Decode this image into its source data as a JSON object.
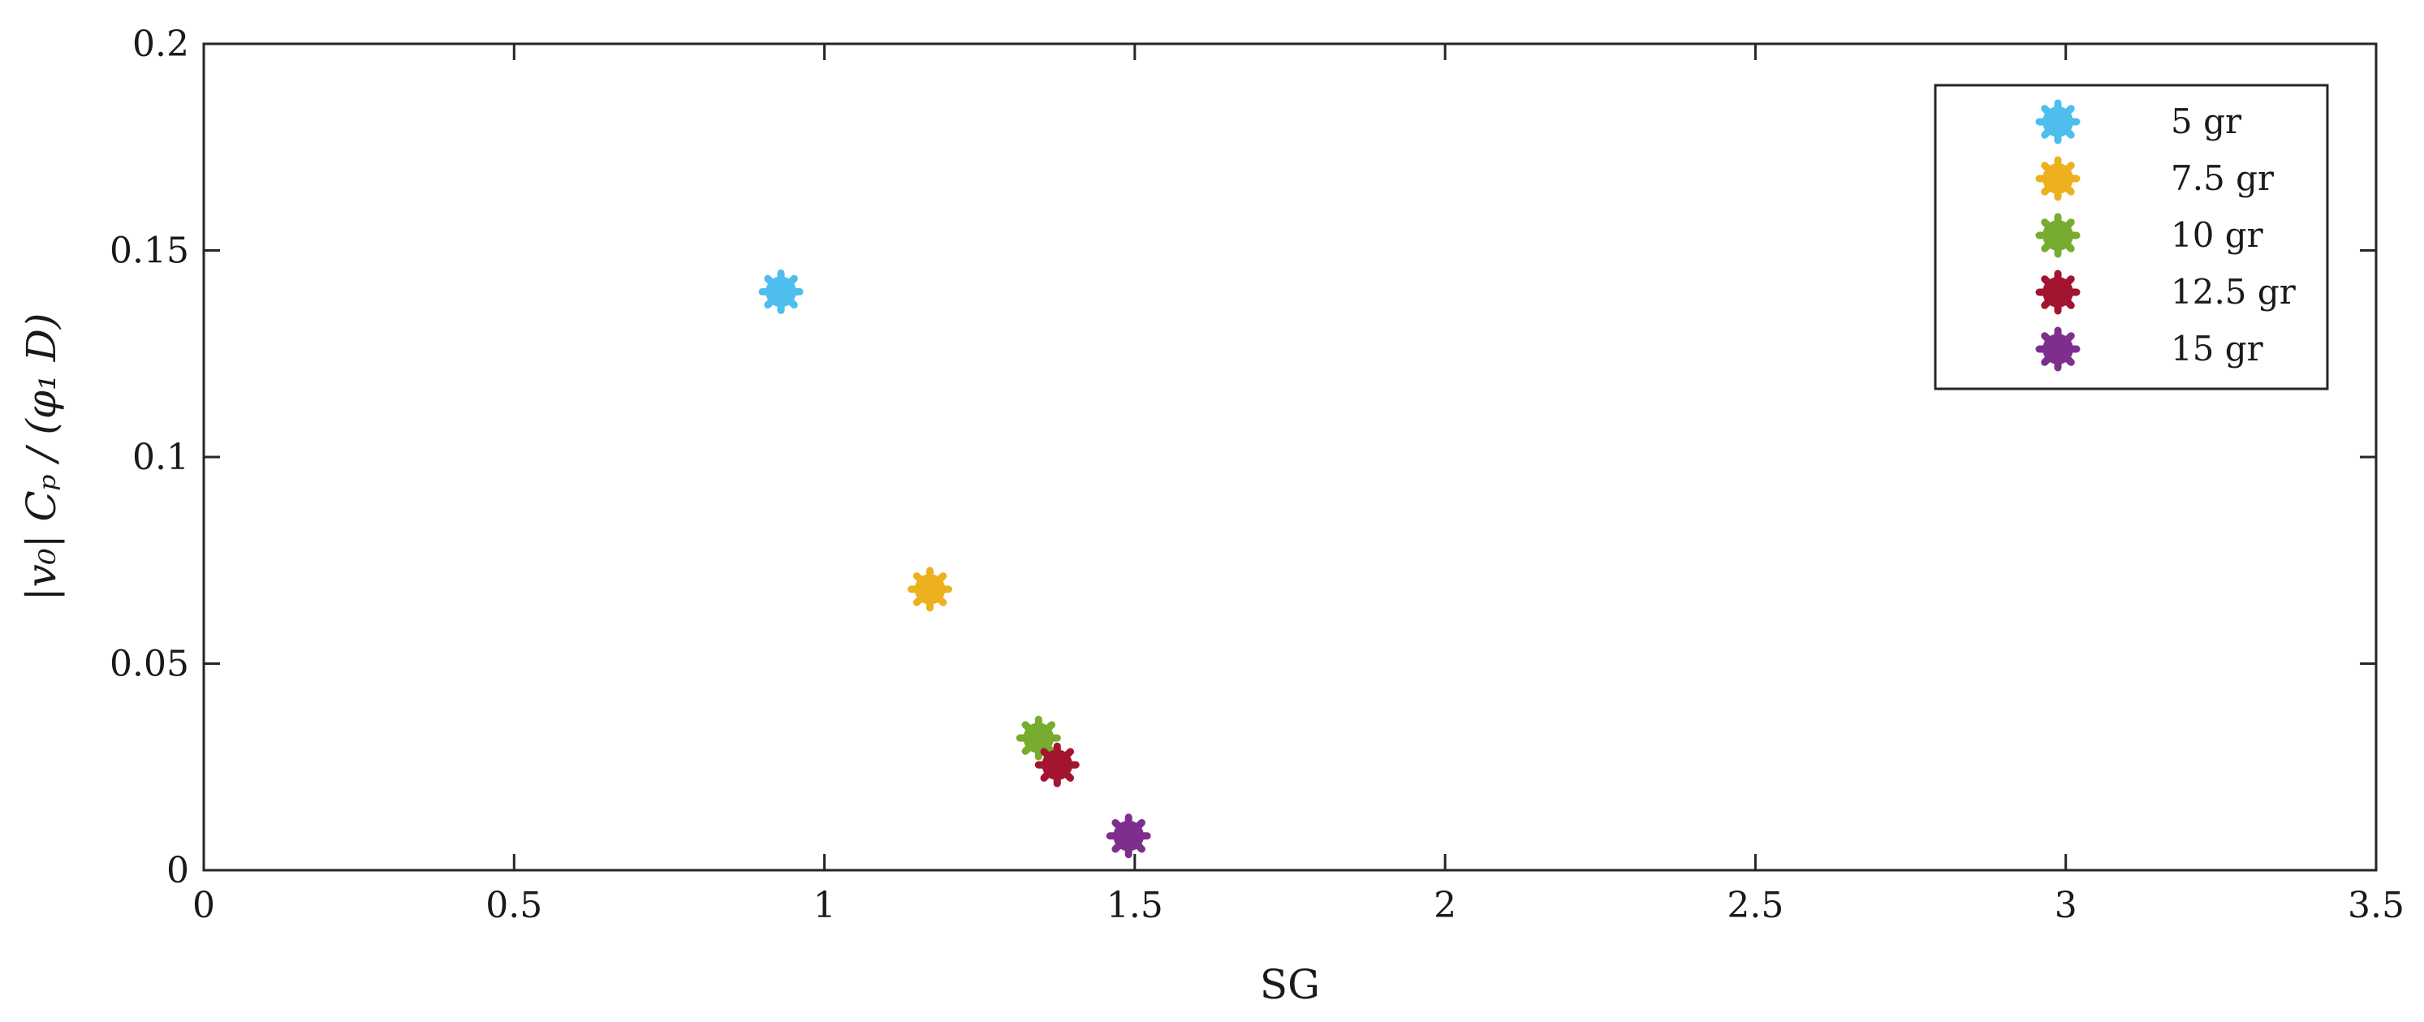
{
  "chart_data": {
    "type": "scatter",
    "xlabel": "SG",
    "ylabel": "|v₀| Cₚ / (φ₁ D)",
    "xlim": [
      0,
      3.5
    ],
    "ylim": [
      0,
      0.2
    ],
    "xticks": [
      "0",
      "0.5",
      "1",
      "1.5",
      "2",
      "2.5",
      "3",
      "3.5"
    ],
    "yticks": [
      "0",
      "0.05",
      "0.1",
      "0.15",
      "0.2"
    ],
    "grid": false,
    "legend_position": "top-right",
    "marker": "asterisk-filled-circle",
    "series": [
      {
        "name": "5 gr",
        "color": "#4DBEEE",
        "points": [
          {
            "x": 0.93,
            "y": 0.14
          }
        ]
      },
      {
        "name": "7.5 gr",
        "color": "#EDB120",
        "points": [
          {
            "x": 1.17,
            "y": 0.068
          }
        ]
      },
      {
        "name": "10 gr",
        "color": "#77AC30",
        "points": [
          {
            "x": 1.345,
            "y": 0.032
          }
        ]
      },
      {
        "name": "12.5 gr",
        "color": "#A2142F",
        "points": [
          {
            "x": 1.375,
            "y": 0.0255
          }
        ]
      },
      {
        "name": "15 gr",
        "color": "#7E2F8E",
        "points": [
          {
            "x": 1.49,
            "y": 0.0083
          }
        ]
      }
    ]
  }
}
